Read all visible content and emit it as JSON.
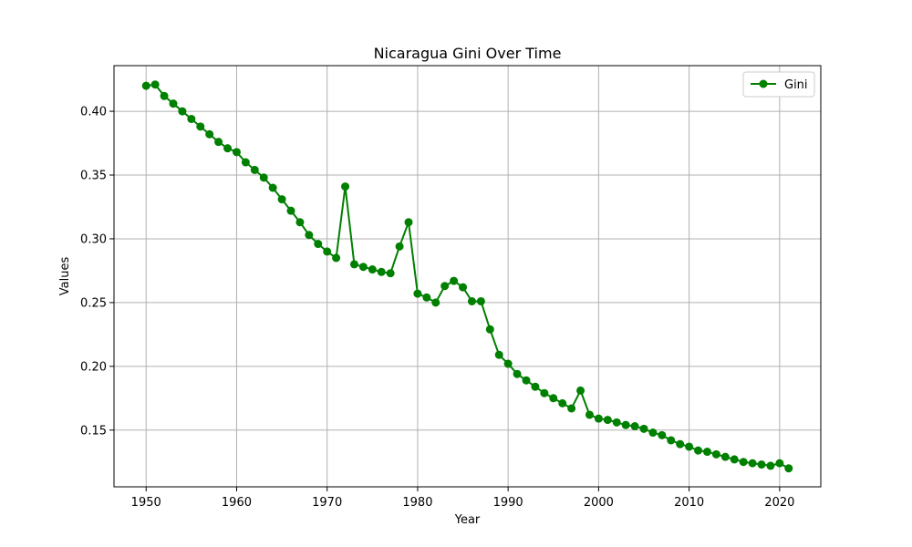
{
  "chart_data": {
    "type": "line",
    "title": "Nicaragua Gini Over Time",
    "xlabel": "Year",
    "ylabel": "Values",
    "xlim": [
      1946.45,
      2024.55
    ],
    "ylim": [
      0.1055,
      0.4358
    ],
    "x_ticks": [
      1950,
      1960,
      1970,
      1980,
      1990,
      2000,
      2010,
      2020
    ],
    "y_ticks": [
      0.15,
      0.2,
      0.25,
      0.3,
      0.35,
      0.4
    ],
    "y_tick_labels": [
      "0.15",
      "0.20",
      "0.25",
      "0.30",
      "0.35",
      "0.40"
    ],
    "grid": true,
    "legend_position": "top-right",
    "series": [
      {
        "name": "Gini",
        "color": "#008000",
        "marker": "circle",
        "x": [
          1950,
          1951,
          1952,
          1953,
          1954,
          1955,
          1956,
          1957,
          1958,
          1959,
          1960,
          1961,
          1962,
          1963,
          1964,
          1965,
          1966,
          1967,
          1968,
          1969,
          1970,
          1971,
          1972,
          1973,
          1974,
          1975,
          1976,
          1977,
          1978,
          1979,
          1980,
          1981,
          1982,
          1983,
          1984,
          1985,
          1986,
          1987,
          1988,
          1989,
          1990,
          1991,
          1992,
          1993,
          1994,
          1995,
          1996,
          1997,
          1998,
          1999,
          2000,
          2001,
          2002,
          2003,
          2004,
          2005,
          2006,
          2007,
          2008,
          2009,
          2010,
          2011,
          2012,
          2013,
          2014,
          2015,
          2016,
          2017,
          2018,
          2019,
          2020,
          2021
        ],
        "values": [
          0.42,
          0.421,
          0.412,
          0.406,
          0.4,
          0.394,
          0.388,
          0.382,
          0.376,
          0.371,
          0.368,
          0.36,
          0.354,
          0.348,
          0.34,
          0.331,
          0.322,
          0.313,
          0.303,
          0.296,
          0.29,
          0.285,
          0.341,
          0.28,
          0.278,
          0.276,
          0.274,
          0.273,
          0.294,
          0.313,
          0.257,
          0.254,
          0.25,
          0.263,
          0.267,
          0.262,
          0.251,
          0.251,
          0.229,
          0.209,
          0.202,
          0.194,
          0.189,
          0.184,
          0.179,
          0.175,
          0.171,
          0.167,
          0.181,
          0.162,
          0.159,
          0.158,
          0.156,
          0.154,
          0.153,
          0.151,
          0.148,
          0.146,
          0.142,
          0.139,
          0.137,
          0.134,
          0.133,
          0.131,
          0.129,
          0.127,
          0.125,
          0.124,
          0.123,
          0.122,
          0.124,
          0.12
        ]
      }
    ]
  }
}
